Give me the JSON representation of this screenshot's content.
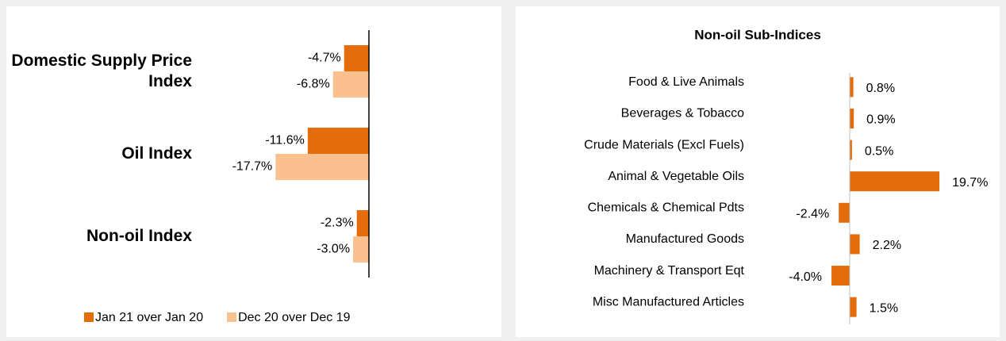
{
  "chart_data": [
    {
      "type": "bar",
      "orientation": "horizontal",
      "categories": [
        "Domestic Supply Price Index",
        "Oil Index",
        "Non-oil Index"
      ],
      "series": [
        {
          "name": "Jan 21 over Jan 20",
          "color": "#e46c0a",
          "values": [
            -4.7,
            -11.6,
            -2.3
          ],
          "value_labels": [
            "-4.7%",
            "-11.6%",
            "-2.3%"
          ]
        },
        {
          "name": "Dec 20 over Dec 19",
          "color": "#fac090",
          "values": [
            -6.8,
            -17.7,
            -3.0
          ],
          "value_labels": [
            "-6.8%",
            "-17.7%",
            "-3.0%"
          ]
        }
      ],
      "xlim": [
        -20,
        0
      ],
      "legend": "bottom"
    },
    {
      "type": "bar",
      "orientation": "horizontal",
      "title": "Non-oil Sub-Indices",
      "categories": [
        "Food & Live Animals",
        "Beverages & Tobacco",
        "Crude Materials (Excl Fuels)",
        "Animal & Vegetable Oils",
        "Chemicals & Chemical Pdts",
        "Manufactured Goods",
        "Machinery & Transport Eqt",
        "Misc Manufactured Articles"
      ],
      "values": [
        0.8,
        0.9,
        0.5,
        19.7,
        -2.4,
        2.2,
        -4.0,
        1.5
      ],
      "value_labels": [
        "0.8%",
        "0.9%",
        "0.5%",
        "19.7%",
        "-2.4%",
        "2.2%",
        "-4.0%",
        "1.5%"
      ],
      "color": "#e46c0a",
      "xlim": [
        -5,
        20
      ]
    }
  ]
}
